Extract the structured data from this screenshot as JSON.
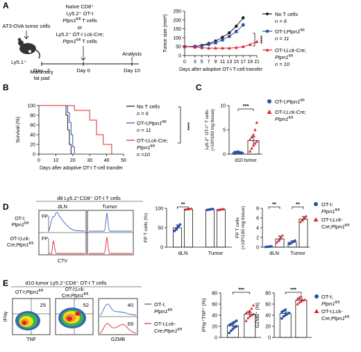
{
  "colors": {
    "black": "#1a1a1a",
    "blue": "#2b4fa8",
    "red": "#e0242b",
    "flow_blue": "#3b63b8",
    "flow_red": "#e0242b"
  },
  "panel_a": {
    "letter": "A",
    "schematic": {
      "cells": "AT3-OVA tumor cells",
      "mouse": "Ly5.1⁺",
      "site": "Mammary fat pad",
      "inj_title": "Naïve CD8⁺",
      "inj_line2": "Ly5.2⁺ OT-I",
      "inj_line3": "Ptpn1",
      "inj_line3_sup": "fl/fl",
      "inj_line3_tail": " T cells",
      "inj_or": "or",
      "inj_line5": "Ly5.2⁺ OT-I Lck-Cre;",
      "inj_line6": "Ptpn1",
      "inj_line6_sup": "fl/fl",
      "inj_line6_tail": " T cells",
      "analysis": "Analysis",
      "days": [
        "Day –7",
        "Day 0",
        "Day 10"
      ]
    },
    "legend": [
      {
        "name": "No T cells",
        "n": "n = 6"
      },
      {
        "name": "OT-I;Ptpn1fl/fl",
        "n": "n = 11"
      },
      {
        "name": "OT-I;Lck-Cre;Ptpn1fl/fl",
        "n": "n = 10"
      }
    ],
    "significance": "****"
  },
  "panel_b": {
    "letter": "B",
    "significance": "****",
    "legend": [
      {
        "name": "No T cells",
        "n": "n = 6"
      },
      {
        "name": "OT-I;Ptpn1fl/fl",
        "n": "n = 11"
      },
      {
        "name": "OT-I;Lck-Cre;Ptpn1fl/fl",
        "n": "n =10"
      }
    ]
  },
  "panel_c": {
    "letter": "C",
    "significance": "***",
    "legend": [
      "OT-I;Ptpn1fl/fl",
      "OT-I;Lck-Cre;Ptpn1fl/fl"
    ]
  },
  "panel_d": {
    "letter": "D",
    "title": "d8 Ly5.2⁺CD8⁺ OT-I T cells",
    "col_dln": "dLN",
    "col_tumor": "Tumor",
    "row1": "OT-I;",
    "row1b": "Ptpn1fl/fl",
    "row2": "OT-I;Lck-",
    "row2b": "Cre;Ptpn1fl/fl",
    "fp": "FP",
    "ctv": "CTV",
    "sig": [
      "**",
      "**",
      "**"
    ],
    "legend": [
      "OT-I;",
      "Ptpn1fl/fl",
      "OT-I;Lck-",
      "Cre;Ptpn1fl/fl"
    ]
  },
  "panel_e": {
    "letter": "E",
    "title": "d10 tumor Ly5.2⁺CD8⁺ OT-I T cells",
    "plot1_title": "OT-I;Ptpn1fl/fl",
    "plot2_title": "OT-I;Lck-",
    "plot2_title2": "Cre;Ptpn1fl/fl",
    "q1": "25",
    "q2": "52",
    "h_blue": "40",
    "h_red": "69",
    "ifn": "IFNγ",
    "tnf": "TNF",
    "gzmb": "GZMB",
    "legend_mid": [
      "OT-I;",
      "Ptpn1fl/fl",
      "OT-I;Lck-",
      "Cre;Ptpn1fl/fl"
    ],
    "legend_right": [
      "OT-I;",
      "Ptpn1fl/fl",
      "OT-I;Lck-",
      "Cre;Ptpn1fl/fl"
    ],
    "sig": [
      "***",
      "***"
    ]
  },
  "chart_data": [
    {
      "id": "A",
      "type": "line",
      "xlabel": "Days after adoptive OT-I T-cell transfer",
      "ylabel": "Tumor size (mm²)",
      "xlim": [
        0,
        21
      ],
      "ylim": [
        0,
        250
      ],
      "xticks": [
        0,
        3,
        5,
        7,
        9,
        11,
        13,
        15,
        17,
        19,
        21
      ],
      "yticks": [
        0,
        50,
        100,
        150,
        200,
        250
      ],
      "series": [
        {
          "name": "No T cells",
          "x": [
            0,
            3,
            5,
            7,
            9,
            11,
            13,
            15,
            17
          ],
          "y": [
            50,
            52,
            58,
            68,
            82,
            103,
            128,
            165,
            212
          ],
          "err": [
            3,
            3,
            3,
            4,
            5,
            6,
            7,
            9,
            11
          ]
        },
        {
          "name": "OT-I;Ptpn1fl/fl",
          "x": [
            0,
            3,
            5,
            7,
            9,
            11,
            13,
            15,
            17
          ],
          "y": [
            50,
            51,
            55,
            63,
            72,
            88,
            108,
            135,
            172
          ],
          "err": [
            3,
            3,
            3,
            4,
            5,
            6,
            7,
            8,
            10
          ]
        },
        {
          "name": "OT-I;Lck-Cre;Ptpn1fl/fl",
          "x": [
            0,
            3,
            5,
            7,
            9,
            11,
            13,
            15,
            17,
            19,
            21
          ],
          "y": [
            50,
            47,
            44,
            42,
            42,
            42,
            42,
            45,
            50,
            62,
            78
          ],
          "err": [
            3,
            3,
            3,
            3,
            3,
            3,
            3,
            3,
            4,
            5,
            6
          ]
        }
      ]
    },
    {
      "id": "B",
      "type": "line",
      "xlabel": "Days after adoptive OT-I T-cell transfer",
      "ylabel": "Survival (%)",
      "xlim": [
        0,
        50
      ],
      "ylim": [
        0,
        100
      ],
      "xticks": [
        0,
        10,
        20,
        30,
        40,
        50
      ],
      "yticks": [
        0,
        20,
        40,
        60,
        80,
        100
      ],
      "series": [
        {
          "name": "No T cells",
          "x": [
            0,
            16,
            16,
            17,
            17,
            18,
            18,
            19,
            19
          ],
          "y": [
            100,
            100,
            80,
            80,
            50,
            50,
            20,
            20,
            0
          ]
        },
        {
          "name": "OT-I;Ptpn1fl/fl",
          "x": [
            0,
            17,
            17,
            18,
            18,
            19,
            19,
            20,
            20,
            21,
            21
          ],
          "y": [
            100,
            100,
            85,
            85,
            65,
            65,
            40,
            40,
            15,
            15,
            0
          ]
        },
        {
          "name": "OT-I;Lck-Cre;Ptpn1fl/fl",
          "x": [
            0,
            21,
            21,
            30,
            30,
            34,
            34,
            38,
            38,
            43,
            43
          ],
          "y": [
            100,
            100,
            90,
            90,
            70,
            70,
            40,
            40,
            20,
            20,
            0
          ]
        }
      ]
    },
    {
      "id": "C",
      "type": "scatter",
      "categories": [
        "d10 tumor"
      ],
      "ylabel": "Ly5.2⁺ OT-I⁺ T cells (×10³/100 mg tissue)",
      "ylim": [
        0,
        10
      ],
      "yticks": [
        0,
        5,
        10
      ],
      "series": [
        {
          "name": "OT-I;Ptpn1fl/fl",
          "mean": 0.3,
          "err": 0.1,
          "values": [
            0.1,
            0.2,
            0.2,
            0.3,
            0.3,
            0.4,
            0.4,
            0.5
          ]
        },
        {
          "name": "OT-I;Lck-Cre;Ptpn1fl/fl",
          "mean": 2.8,
          "err": 0.8,
          "values": [
            0.6,
            1.2,
            1.8,
            2.2,
            2.6,
            3.0,
            3.5,
            4.0,
            5.0,
            6.5
          ]
        }
      ]
    },
    {
      "id": "D1",
      "type": "bar",
      "categories": [
        "dLN",
        "Tumor"
      ],
      "ylabel": "FP T cells (%)",
      "ylim": [
        0,
        100
      ],
      "yticks": [
        0,
        50,
        100
      ],
      "series": [
        {
          "name": "OT-I;Ptpn1fl/fl",
          "values": [
            50,
            97
          ],
          "err": [
            7,
            1
          ]
        },
        {
          "name": "OT-I;Lck-Cre;Ptpn1fl/fl",
          "values": [
            98,
            97
          ],
          "err": [
            1,
            1
          ]
        }
      ]
    },
    {
      "id": "D2",
      "type": "bar",
      "categories": [
        "dLN",
        "Tumor"
      ],
      "ylabel": "FP T cells (×10³/100 mg tissue)",
      "ylim": [
        0,
        8
      ],
      "yticks": [
        0,
        2,
        4,
        6,
        8
      ],
      "series": [
        {
          "name": "OT-I;Ptpn1fl/fl",
          "values": [
            0.1,
            1.0
          ],
          "err": [
            0.05,
            0.3
          ]
        },
        {
          "name": "OT-I;Lck-Cre;Ptpn1fl/fl",
          "values": [
            1.7,
            5.8
          ],
          "err": [
            0.6,
            0.5
          ]
        }
      ]
    },
    {
      "id": "E1",
      "type": "bar",
      "ylabel": "IFNγ⁺TNF⁺ (%)",
      "ylim": [
        0,
        80
      ],
      "yticks": [
        0,
        20,
        40,
        60,
        80
      ],
      "series": [
        {
          "name": "OT-I;Ptpn1fl/fl",
          "values": [
            21
          ],
          "err": [
            3
          ],
          "points": [
            8,
            12,
            15,
            18,
            20,
            22,
            24,
            26,
            28,
            30
          ]
        },
        {
          "name": "OT-I;Lck-Cre;Ptpn1fl/fl",
          "values": [
            42
          ],
          "err": [
            3
          ],
          "points": [
            30,
            35,
            38,
            40,
            42,
            44,
            46,
            48,
            52,
            58
          ]
        }
      ]
    },
    {
      "id": "E2",
      "type": "bar",
      "ylabel": "GZMB⁺ (%)",
      "ylim": [
        0,
        80
      ],
      "yticks": [
        0,
        20,
        40,
        60,
        80
      ],
      "series": [
        {
          "name": "OT-I;Ptpn1fl/fl",
          "values": [
            43
          ],
          "err": [
            3
          ],
          "points": [
            34,
            38,
            40,
            42,
            44,
            46,
            48,
            50
          ]
        },
        {
          "name": "OT-I;Lck-Cre;Ptpn1fl/fl",
          "values": [
            67
          ],
          "err": [
            2
          ],
          "points": [
            60,
            63,
            65,
            67,
            68,
            70,
            72,
            74
          ]
        }
      ]
    }
  ]
}
